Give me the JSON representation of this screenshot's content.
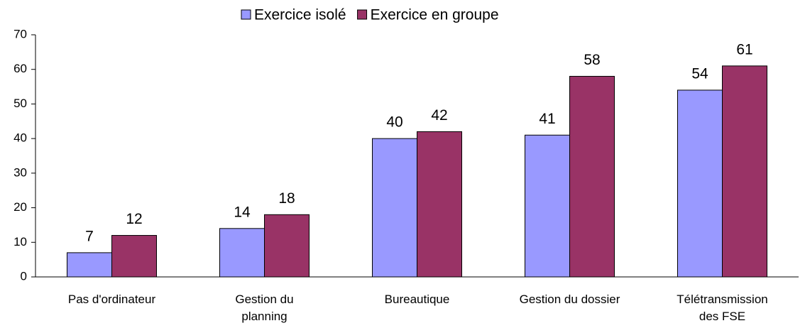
{
  "chart_data": {
    "type": "bar",
    "categories": [
      "Pas d'ordinateur",
      "Gestion du\nplanning",
      "Bureautique",
      "Gestion du dossier",
      "Télétransmission\ndes FSE"
    ],
    "series": [
      {
        "name": "Exercice isolé",
        "color": "#9999ff",
        "values": [
          7,
          14,
          40,
          41,
          54
        ]
      },
      {
        "name": "Exercice en groupe",
        "color": "#993366",
        "values": [
          12,
          18,
          42,
          58,
          61
        ]
      }
    ],
    "ylim": [
      0,
      70
    ],
    "yticks": [
      0,
      10,
      20,
      30,
      40,
      50,
      60,
      70
    ],
    "legend": "top"
  }
}
